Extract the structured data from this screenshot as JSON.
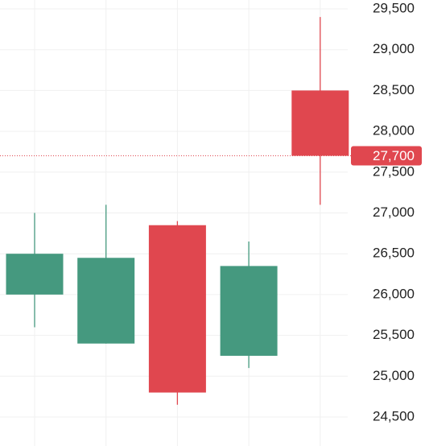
{
  "chart_data": {
    "type": "candlestick",
    "open": [
      26000,
      25400,
      26850,
      25250,
      28500
    ],
    "high": [
      27000,
      27100,
      26900,
      26650,
      29400
    ],
    "low": [
      25600,
      25400,
      24650,
      25100,
      27100
    ],
    "close": [
      26500,
      26450,
      24800,
      26350,
      27700
    ],
    "up_color": "#45997f",
    "down_color": "#e0474f",
    "ylim": [
      24500,
      29500
    ],
    "yticks": [
      {
        "value": 24500,
        "label": "24,500"
      },
      {
        "value": 25000,
        "label": "25,000"
      },
      {
        "value": 25500,
        "label": "25,500"
      },
      {
        "value": 26000,
        "label": "26,000"
      },
      {
        "value": 26500,
        "label": "26,500"
      },
      {
        "value": 27000,
        "label": "27,000"
      },
      {
        "value": 27500,
        "label": "27,500"
      },
      {
        "value": 28000,
        "label": "28,000"
      },
      {
        "value": 28500,
        "label": "28,500"
      },
      {
        "value": 29000,
        "label": "29,000"
      },
      {
        "value": 29500,
        "label": "29,500"
      }
    ],
    "last_price": {
      "value": 27700,
      "label": "27,700"
    },
    "grid": true
  }
}
